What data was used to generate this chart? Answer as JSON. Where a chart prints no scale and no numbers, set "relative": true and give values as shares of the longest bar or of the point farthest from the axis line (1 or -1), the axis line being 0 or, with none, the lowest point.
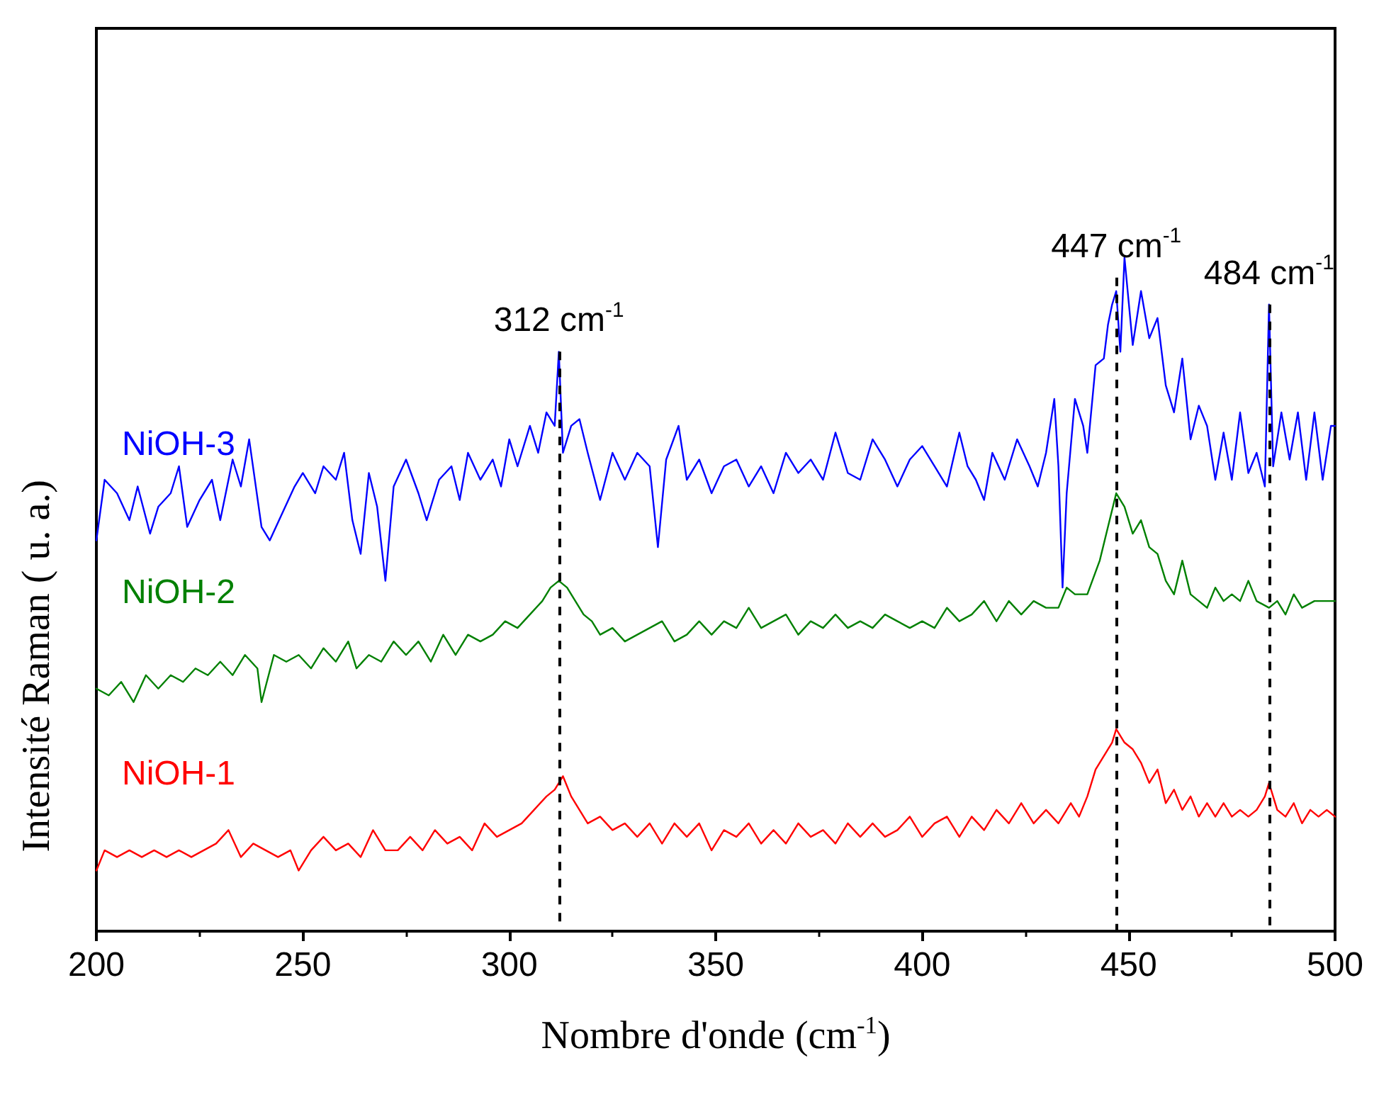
{
  "chart_data": {
    "type": "line",
    "relative": true,
    "xlabel": "Nombre d'onde (cm$^{-1}$)",
    "ylabel": "Intensité Raman ( u. a.)",
    "xlim": [
      200,
      500
    ],
    "xticks": [
      200,
      250,
      300,
      350,
      400,
      450,
      500
    ],
    "grid": false,
    "legend": false,
    "marker": "none",
    "line_style": "solid",
    "annotations": [
      {
        "text": "312 cm$^{-1}$",
        "x": 312,
        "y": 0.86
      },
      {
        "text": "447 cm$^{-1}$",
        "x": 447,
        "y": 0.97
      },
      {
        "text": "484 cm$^{-1}$",
        "x": 484,
        "y": 0.93
      }
    ],
    "series": [
      {
        "name": "NiOH-3",
        "color": "#0000ff",
        "x": [
          200,
          202,
          205,
          208,
          210,
          213,
          215,
          218,
          220,
          222,
          225,
          228,
          230,
          233,
          235,
          237,
          240,
          242,
          245,
          248,
          250,
          253,
          255,
          258,
          260,
          262,
          264,
          266,
          268,
          270,
          272,
          275,
          278,
          280,
          283,
          286,
          288,
          290,
          293,
          296,
          298,
          300,
          302,
          305,
          307,
          309,
          311,
          312,
          313,
          315,
          317,
          319,
          322,
          325,
          328,
          331,
          334,
          336,
          338,
          341,
          343,
          346,
          349,
          352,
          355,
          358,
          361,
          364,
          367,
          370,
          373,
          376,
          379,
          382,
          385,
          388,
          391,
          394,
          397,
          400,
          403,
          406,
          409,
          411,
          413,
          415,
          417,
          420,
          423,
          426,
          428,
          430,
          432,
          433,
          434,
          435,
          437,
          439,
          440,
          442,
          444,
          445,
          446,
          447,
          448,
          449,
          451,
          453,
          455,
          457,
          459,
          461,
          463,
          465,
          467,
          469,
          471,
          473,
          475,
          477,
          479,
          481,
          483,
          484,
          485,
          487,
          489,
          491,
          493,
          495,
          497,
          499,
          500
        ],
        "values": [
          0.58,
          0.67,
          0.65,
          0.61,
          0.66,
          0.59,
          0.63,
          0.65,
          0.69,
          0.6,
          0.64,
          0.67,
          0.61,
          0.7,
          0.66,
          0.73,
          0.6,
          0.58,
          0.62,
          0.66,
          0.68,
          0.65,
          0.69,
          0.67,
          0.71,
          0.61,
          0.56,
          0.68,
          0.63,
          0.52,
          0.66,
          0.7,
          0.65,
          0.61,
          0.67,
          0.69,
          0.64,
          0.71,
          0.67,
          0.7,
          0.66,
          0.73,
          0.69,
          0.75,
          0.71,
          0.77,
          0.75,
          0.86,
          0.71,
          0.75,
          0.76,
          0.71,
          0.64,
          0.71,
          0.67,
          0.71,
          0.69,
          0.57,
          0.7,
          0.75,
          0.67,
          0.7,
          0.65,
          0.69,
          0.7,
          0.66,
          0.69,
          0.65,
          0.71,
          0.68,
          0.7,
          0.67,
          0.74,
          0.68,
          0.67,
          0.73,
          0.7,
          0.66,
          0.7,
          0.72,
          0.69,
          0.66,
          0.74,
          0.69,
          0.67,
          0.64,
          0.71,
          0.67,
          0.73,
          0.69,
          0.66,
          0.71,
          0.79,
          0.69,
          0.51,
          0.65,
          0.79,
          0.75,
          0.71,
          0.84,
          0.85,
          0.9,
          0.93,
          0.95,
          0.86,
          1.0,
          0.87,
          0.95,
          0.88,
          0.91,
          0.81,
          0.77,
          0.85,
          0.73,
          0.78,
          0.75,
          0.67,
          0.74,
          0.67,
          0.77,
          0.68,
          0.71,
          0.66,
          0.93,
          0.69,
          0.77,
          0.7,
          0.77,
          0.67,
          0.77,
          0.67,
          0.75,
          0.75
        ]
      },
      {
        "name": "NiOH-2",
        "color": "#008000",
        "x": [
          200,
          203,
          206,
          209,
          212,
          215,
          218,
          221,
          224,
          227,
          230,
          233,
          236,
          239,
          240,
          243,
          246,
          249,
          252,
          255,
          258,
          261,
          263,
          266,
          269,
          272,
          275,
          278,
          281,
          284,
          287,
          290,
          293,
          296,
          299,
          302,
          305,
          308,
          310,
          312,
          314,
          316,
          318,
          320,
          322,
          325,
          328,
          331,
          334,
          337,
          340,
          343,
          346,
          349,
          352,
          355,
          358,
          361,
          364,
          367,
          370,
          373,
          376,
          379,
          382,
          385,
          388,
          391,
          394,
          397,
          400,
          403,
          406,
          409,
          412,
          415,
          418,
          421,
          424,
          427,
          430,
          433,
          435,
          437,
          440,
          443,
          445,
          447,
          449,
          451,
          453,
          455,
          457,
          459,
          461,
          463,
          465,
          467,
          469,
          471,
          473,
          475,
          477,
          479,
          481,
          484,
          486,
          488,
          490,
          492,
          495,
          498,
          500
        ],
        "values": [
          0.36,
          0.35,
          0.37,
          0.34,
          0.38,
          0.36,
          0.38,
          0.37,
          0.39,
          0.38,
          0.4,
          0.38,
          0.41,
          0.39,
          0.34,
          0.41,
          0.4,
          0.41,
          0.39,
          0.42,
          0.4,
          0.43,
          0.39,
          0.41,
          0.4,
          0.43,
          0.41,
          0.43,
          0.4,
          0.44,
          0.41,
          0.44,
          0.43,
          0.44,
          0.46,
          0.45,
          0.47,
          0.49,
          0.51,
          0.52,
          0.51,
          0.49,
          0.47,
          0.46,
          0.44,
          0.45,
          0.43,
          0.44,
          0.45,
          0.46,
          0.43,
          0.44,
          0.46,
          0.44,
          0.46,
          0.45,
          0.48,
          0.45,
          0.46,
          0.47,
          0.44,
          0.46,
          0.45,
          0.47,
          0.45,
          0.46,
          0.45,
          0.47,
          0.46,
          0.45,
          0.46,
          0.45,
          0.48,
          0.46,
          0.47,
          0.49,
          0.46,
          0.49,
          0.47,
          0.49,
          0.48,
          0.48,
          0.51,
          0.5,
          0.5,
          0.55,
          0.6,
          0.65,
          0.63,
          0.59,
          0.61,
          0.57,
          0.56,
          0.52,
          0.5,
          0.55,
          0.5,
          0.49,
          0.48,
          0.51,
          0.49,
          0.5,
          0.49,
          0.52,
          0.49,
          0.48,
          0.49,
          0.47,
          0.5,
          0.48,
          0.49,
          0.49,
          0.49
        ]
      },
      {
        "name": "NiOH-1",
        "color": "#ff0000",
        "x": [
          200,
          202,
          205,
          208,
          211,
          214,
          217,
          220,
          223,
          226,
          229,
          232,
          235,
          238,
          241,
          244,
          247,
          249,
          252,
          255,
          258,
          261,
          264,
          267,
          270,
          273,
          276,
          279,
          282,
          285,
          288,
          291,
          294,
          297,
          300,
          303,
          306,
          309,
          311,
          313,
          315,
          317,
          319,
          322,
          325,
          328,
          331,
          334,
          337,
          340,
          343,
          346,
          349,
          352,
          355,
          358,
          361,
          364,
          367,
          370,
          373,
          376,
          379,
          382,
          385,
          388,
          391,
          394,
          397,
          400,
          403,
          406,
          409,
          412,
          415,
          418,
          421,
          424,
          427,
          430,
          433,
          436,
          438,
          440,
          442,
          444,
          446,
          447,
          449,
          451,
          453,
          455,
          457,
          459,
          461,
          463,
          465,
          467,
          469,
          471,
          473,
          475,
          477,
          479,
          481,
          483,
          484,
          486,
          488,
          490,
          492,
          494,
          496,
          498,
          500
        ],
        "values": [
          0.09,
          0.12,
          0.11,
          0.12,
          0.11,
          0.12,
          0.11,
          0.12,
          0.11,
          0.12,
          0.13,
          0.15,
          0.11,
          0.13,
          0.12,
          0.11,
          0.12,
          0.09,
          0.12,
          0.14,
          0.12,
          0.13,
          0.11,
          0.15,
          0.12,
          0.12,
          0.14,
          0.12,
          0.15,
          0.13,
          0.14,
          0.12,
          0.16,
          0.14,
          0.15,
          0.16,
          0.18,
          0.2,
          0.21,
          0.23,
          0.2,
          0.18,
          0.16,
          0.17,
          0.15,
          0.16,
          0.14,
          0.16,
          0.13,
          0.16,
          0.14,
          0.16,
          0.12,
          0.15,
          0.14,
          0.16,
          0.13,
          0.15,
          0.13,
          0.16,
          0.14,
          0.15,
          0.13,
          0.16,
          0.14,
          0.16,
          0.14,
          0.15,
          0.17,
          0.14,
          0.16,
          0.17,
          0.14,
          0.17,
          0.15,
          0.18,
          0.16,
          0.19,
          0.16,
          0.18,
          0.16,
          0.19,
          0.17,
          0.2,
          0.24,
          0.26,
          0.28,
          0.3,
          0.28,
          0.27,
          0.25,
          0.22,
          0.24,
          0.19,
          0.21,
          0.18,
          0.2,
          0.17,
          0.19,
          0.17,
          0.19,
          0.17,
          0.18,
          0.17,
          0.18,
          0.2,
          0.22,
          0.18,
          0.17,
          0.19,
          0.16,
          0.18,
          0.17,
          0.18,
          0.17
        ]
      }
    ]
  }
}
